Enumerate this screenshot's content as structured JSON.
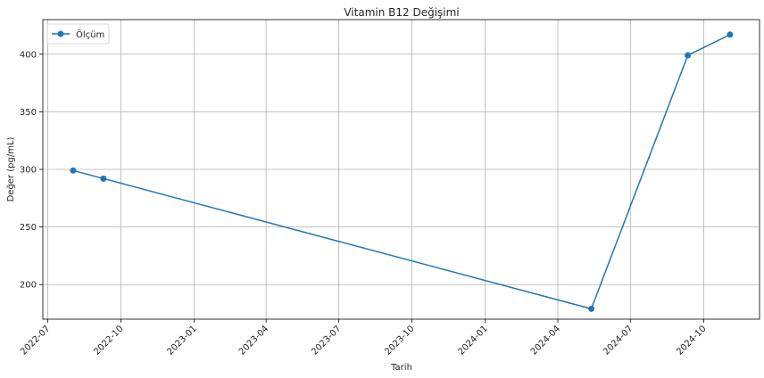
{
  "chart_data": {
    "type": "line",
    "title": "Vitamin B12 Değişimi",
    "xlabel": "Tarih",
    "ylabel": "Değer (pg/mL)",
    "x_is_date": true,
    "xlim": [
      "2022-06-25",
      "2024-12-10"
    ],
    "ylim": [
      170,
      430
    ],
    "xticks": [
      "2022-07",
      "2022-10",
      "2023-01",
      "2023-04",
      "2023-07",
      "2023-10",
      "2024-01",
      "2024-04",
      "2024-07",
      "2024-10"
    ],
    "yticks": [
      200,
      250,
      300,
      350,
      400
    ],
    "grid": true,
    "legend_position": "upper-left",
    "series": [
      {
        "name": "Ölçüm",
        "color": "#1f77b4",
        "marker": "circle",
        "x": [
          "2022-08-02",
          "2022-09-09",
          "2024-05-13",
          "2024-09-11",
          "2024-11-03"
        ],
        "y": [
          299,
          292,
          179,
          399,
          417
        ]
      }
    ]
  }
}
